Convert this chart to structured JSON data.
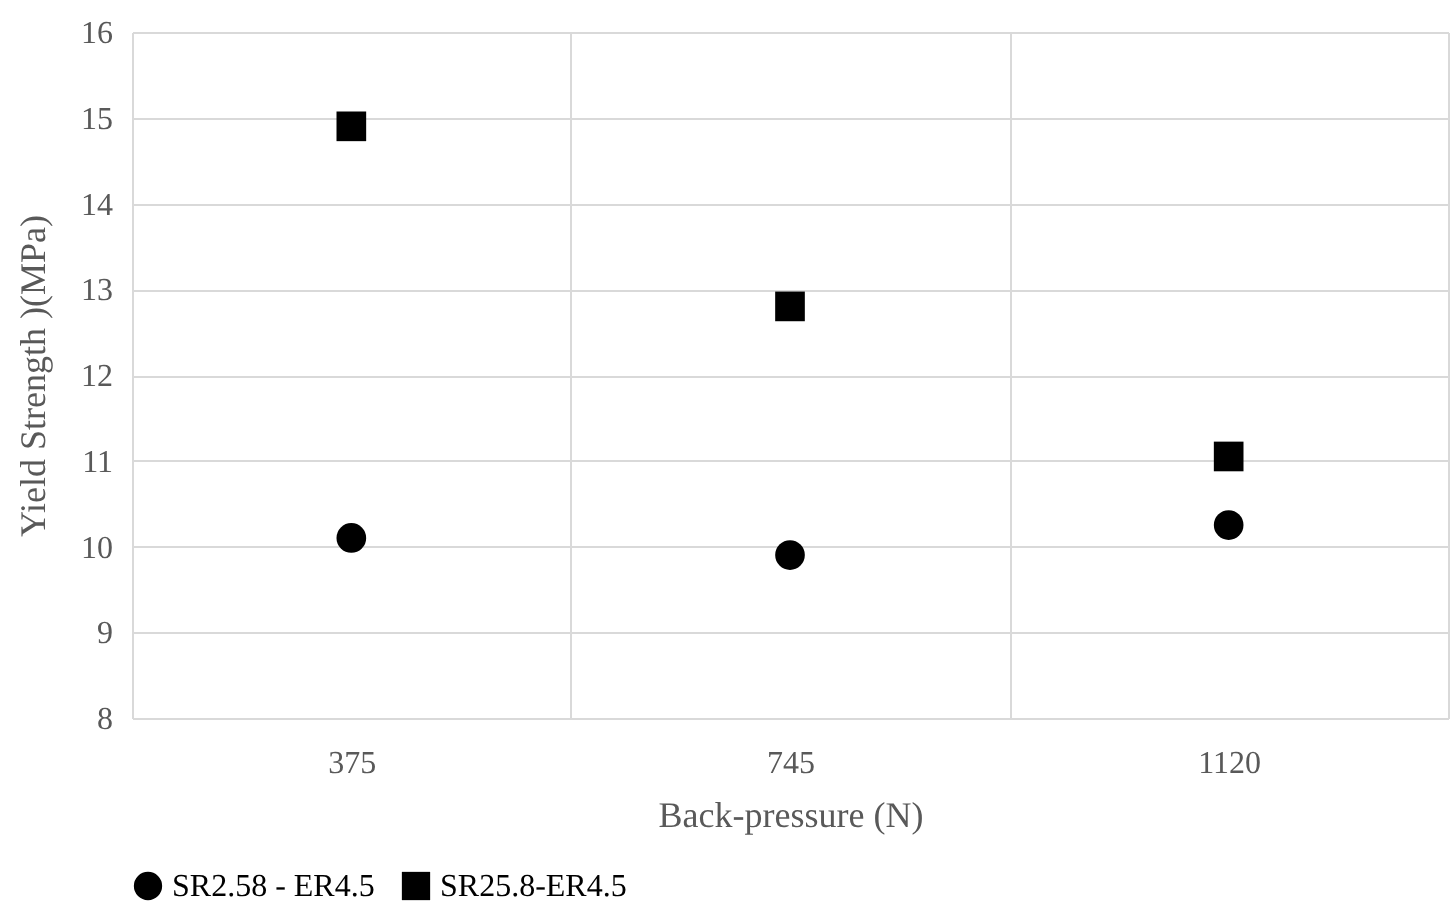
{
  "chart_data": {
    "type": "scatter",
    "xlabel": "Back-pressure (N)",
    "ylabel": "Yield Strength )(MPa)",
    "categories": [
      "375",
      "745",
      "1120"
    ],
    "series": [
      {
        "name": "SR2.58 - ER4.5",
        "color": "#000000",
        "marker": "circle",
        "values": [
          10.1,
          9.9,
          10.25
        ]
      },
      {
        "name": "SR25.8-ER4.5",
        "color": "#000000",
        "marker": "square",
        "values": [
          14.9,
          12.8,
          11.05
        ]
      }
    ],
    "ylim": [
      8,
      16
    ],
    "yticks": [
      8,
      9,
      10,
      11,
      12,
      13,
      14,
      15,
      16
    ],
    "grid": true,
    "legend": "bottom"
  }
}
